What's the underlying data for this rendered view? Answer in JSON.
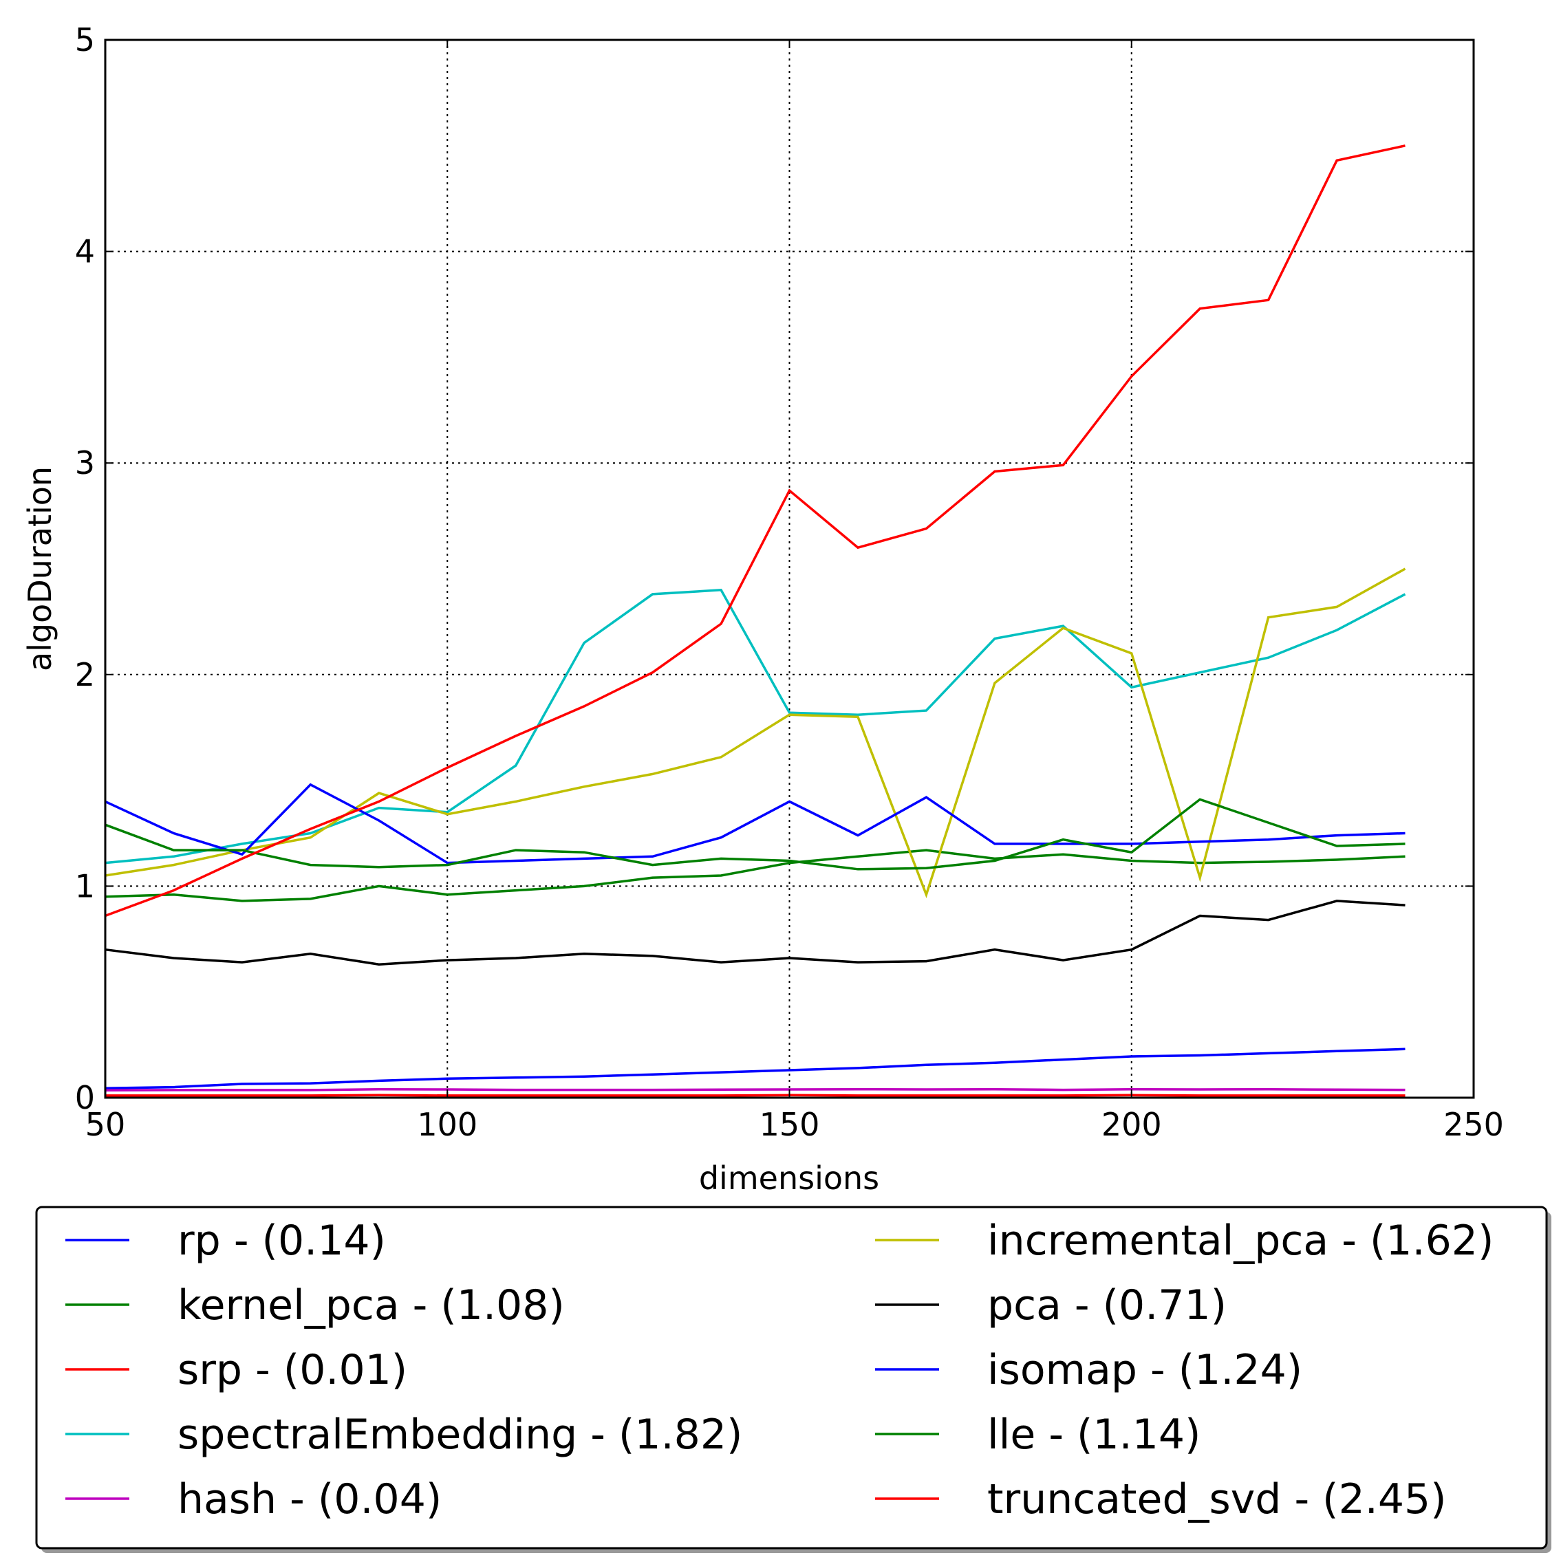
{
  "chart_data": {
    "type": "line",
    "title": "",
    "xlabel": "dimensions",
    "ylabel": "algoDuration",
    "xlim": [
      50,
      250
    ],
    "ylim": [
      0,
      5
    ],
    "xticks": [
      50,
      100,
      150,
      200,
      250
    ],
    "yticks": [
      0,
      1,
      2,
      3,
      4,
      5
    ],
    "xtick_labels": [
      "50",
      "100",
      "150",
      "200",
      "250"
    ],
    "ytick_labels": [
      "0",
      "1",
      "2",
      "3",
      "4",
      "5"
    ],
    "grid": true,
    "legend_position": "below",
    "x": [
      50,
      60,
      70,
      80,
      90,
      100,
      110,
      120,
      130,
      140,
      150,
      160,
      170,
      180,
      190,
      200,
      210,
      220,
      230,
      240
    ],
    "series": [
      {
        "name": "rp - (0.14)",
        "color": "#0000ff",
        "values": [
          0.045,
          0.05,
          0.065,
          0.068,
          0.08,
          0.09,
          0.095,
          0.1,
          0.11,
          0.12,
          0.13,
          0.14,
          0.155,
          0.165,
          0.18,
          0.195,
          0.2,
          0.21,
          0.22,
          0.23
        ]
      },
      {
        "name": "kernel_pca - (1.08)",
        "color": "#008000",
        "values": [
          0.95,
          0.96,
          0.93,
          0.94,
          1.0,
          0.96,
          0.98,
          1.0,
          1.04,
          1.05,
          1.11,
          1.14,
          1.17,
          1.13,
          1.15,
          1.12,
          1.11,
          1.115,
          1.125,
          1.14
        ]
      },
      {
        "name": "srp - (0.01)",
        "color": "#ff0000",
        "values": [
          0.01,
          0.01,
          0.01,
          0.01,
          0.012,
          0.01,
          0.01,
          0.01,
          0.01,
          0.01,
          0.012,
          0.01,
          0.01,
          0.01,
          0.01,
          0.012,
          0.01,
          0.01,
          0.01,
          0.01
        ]
      },
      {
        "name": "spectralEmbedding - (1.82)",
        "color": "#00bfbf",
        "values": [
          1.11,
          1.14,
          1.2,
          1.25,
          1.37,
          1.35,
          1.57,
          2.15,
          2.38,
          2.4,
          1.82,
          1.81,
          1.83,
          2.17,
          2.23,
          1.94,
          2.01,
          2.08,
          2.21,
          2.38
        ]
      },
      {
        "name": "hash - (0.04)",
        "color": "#bf00bf",
        "values": [
          0.035,
          0.036,
          0.036,
          0.036,
          0.04,
          0.039,
          0.037,
          0.037,
          0.037,
          0.038,
          0.039,
          0.04,
          0.039,
          0.04,
          0.037,
          0.04,
          0.039,
          0.04,
          0.038,
          0.037
        ]
      },
      {
        "name": "incremental_pca - (1.62)",
        "color": "#bfbf00",
        "values": [
          1.05,
          1.1,
          1.17,
          1.23,
          1.44,
          1.34,
          1.4,
          1.47,
          1.53,
          1.61,
          1.81,
          1.8,
          0.96,
          1.96,
          2.22,
          2.1,
          1.04,
          2.27,
          2.32,
          2.5
        ]
      },
      {
        "name": "pca - (0.71)",
        "color": "#000000",
        "values": [
          0.7,
          0.66,
          0.64,
          0.68,
          0.63,
          0.65,
          0.66,
          0.68,
          0.67,
          0.64,
          0.66,
          0.64,
          0.645,
          0.7,
          0.65,
          0.7,
          0.86,
          0.84,
          0.93,
          0.91
        ]
      },
      {
        "name": "isomap - (1.24)",
        "color": "#0000ff",
        "values": [
          1.4,
          1.25,
          1.15,
          1.48,
          1.31,
          1.11,
          1.12,
          1.13,
          1.14,
          1.23,
          1.4,
          1.24,
          1.42,
          1.2,
          1.2,
          1.2,
          1.21,
          1.22,
          1.24,
          1.25
        ]
      },
      {
        "name": "lle - (1.14)",
        "color": "#008000",
        "values": [
          1.29,
          1.17,
          1.17,
          1.1,
          1.09,
          1.1,
          1.17,
          1.16,
          1.1,
          1.13,
          1.12,
          1.08,
          1.085,
          1.12,
          1.22,
          1.16,
          1.41,
          1.3,
          1.19,
          1.2
        ]
      },
      {
        "name": "truncated_svd - (2.45)",
        "color": "#ff0000",
        "values": [
          0.86,
          0.98,
          1.13,
          1.27,
          1.4,
          1.56,
          1.71,
          1.85,
          2.01,
          2.24,
          2.87,
          2.6,
          2.69,
          2.96,
          2.99,
          3.41,
          3.73,
          3.77,
          4.43,
          4.5
        ]
      }
    ]
  }
}
